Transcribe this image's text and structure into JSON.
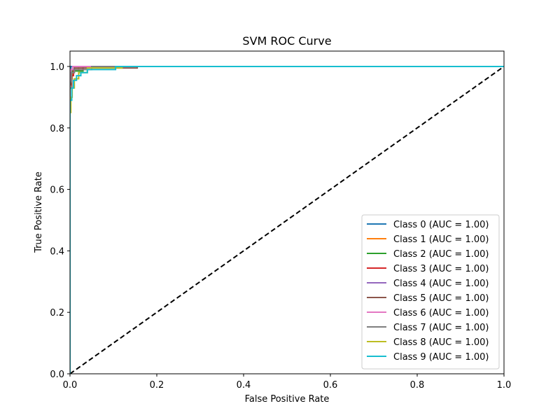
{
  "chart_data": {
    "type": "line",
    "title": "SVM ROC Curve",
    "xlabel": "False Positive Rate",
    "ylabel": "True Positive Rate",
    "xlim": [
      0.0,
      1.0
    ],
    "ylim": [
      0.0,
      1.05
    ],
    "xticks": [
      0.0,
      0.2,
      0.4,
      0.6,
      0.8,
      1.0
    ],
    "yticks": [
      0.0,
      0.2,
      0.4,
      0.6,
      0.8,
      1.0
    ],
    "xtick_labels": [
      "0.0",
      "0.2",
      "0.4",
      "0.6",
      "0.8",
      "1.0"
    ],
    "ytick_labels": [
      "0.0",
      "0.2",
      "0.4",
      "0.6",
      "0.8",
      "1.0"
    ],
    "legend_position": "lower-right",
    "diagonal": {
      "x": [
        0,
        1
      ],
      "y": [
        0,
        1
      ],
      "color": "#000000",
      "style": "dashed"
    },
    "series": [
      {
        "name": "Class 0 (AUC = 1.00)",
        "color": "#1f77b4",
        "x": [
          0,
          0,
          0.002,
          0.002,
          1
        ],
        "y": [
          0,
          0.985,
          0.985,
          1.0,
          1.0
        ]
      },
      {
        "name": "Class 1 (AUC = 1.00)",
        "color": "#ff7f0e",
        "x": [
          0,
          0,
          0.005,
          0.005,
          0.02,
          0.02,
          1
        ],
        "y": [
          0,
          0.96,
          0.96,
          0.99,
          0.99,
          1.0,
          1.0
        ]
      },
      {
        "name": "Class 2 (AUC = 1.00)",
        "color": "#2ca02c",
        "x": [
          0,
          0,
          0.004,
          0.004,
          0.03,
          0.03,
          1
        ],
        "y": [
          0,
          0.95,
          0.95,
          0.985,
          0.985,
          1.0,
          1.0
        ]
      },
      {
        "name": "Class 3 (AUC = 1.00)",
        "color": "#d62728",
        "x": [
          0,
          0,
          0.003,
          0.003,
          0.008,
          0.008,
          0.03,
          0.03,
          1
        ],
        "y": [
          0,
          0.94,
          0.94,
          0.97,
          0.97,
          0.99,
          0.99,
          1.0,
          1.0
        ]
      },
      {
        "name": "Class 4 (AUC = 1.00)",
        "color": "#9467bd",
        "x": [
          0,
          0,
          0.002,
          0.002,
          0.01,
          0.01,
          1
        ],
        "y": [
          0,
          0.97,
          0.97,
          0.99,
          0.99,
          1.0,
          1.0
        ]
      },
      {
        "name": "Class 5 (AUC = 1.00)",
        "color": "#8c564b",
        "x": [
          0,
          0,
          0.004,
          0.004,
          0.01,
          0.01,
          0.155,
          0.155,
          1
        ],
        "y": [
          0,
          0.93,
          0.93,
          0.98,
          0.98,
          0.995,
          0.995,
          1.0,
          1.0
        ]
      },
      {
        "name": "Class 6 (AUC = 1.00)",
        "color": "#e377c2",
        "x": [
          0,
          0,
          0.002,
          0.002,
          0.006,
          0.006,
          1
        ],
        "y": [
          0,
          0.98,
          0.98,
          0.99,
          0.99,
          1.0,
          1.0
        ]
      },
      {
        "name": "Class 7 (AUC = 1.00)",
        "color": "#7f7f7f",
        "x": [
          0,
          0,
          0.003,
          0.003,
          0.01,
          0.01,
          0.05,
          0.05,
          1
        ],
        "y": [
          0,
          0.95,
          0.95,
          0.98,
          0.98,
          0.99,
          0.99,
          1.0,
          1.0
        ]
      },
      {
        "name": "Class 8 (AUC = 1.00)",
        "color": "#bcbd22",
        "x": [
          0,
          0,
          0.002,
          0.002,
          0.005,
          0.005,
          0.01,
          0.01,
          0.02,
          0.02,
          0.04,
          0.04,
          0.12,
          0.12,
          1
        ],
        "y": [
          0,
          0.85,
          0.85,
          0.9,
          0.9,
          0.93,
          0.93,
          0.96,
          0.96,
          0.98,
          0.98,
          0.995,
          0.995,
          1.0,
          1.0
        ]
      },
      {
        "name": "Class 9 (AUC = 1.00)",
        "color": "#17becf",
        "x": [
          0,
          0,
          0.004,
          0.004,
          0.008,
          0.008,
          0.015,
          0.015,
          0.025,
          0.025,
          0.04,
          0.04,
          0.105,
          0.105,
          1
        ],
        "y": [
          0,
          0.89,
          0.89,
          0.93,
          0.93,
          0.955,
          0.955,
          0.97,
          0.97,
          0.98,
          0.98,
          0.99,
          0.99,
          1.0,
          1.0
        ]
      }
    ]
  }
}
